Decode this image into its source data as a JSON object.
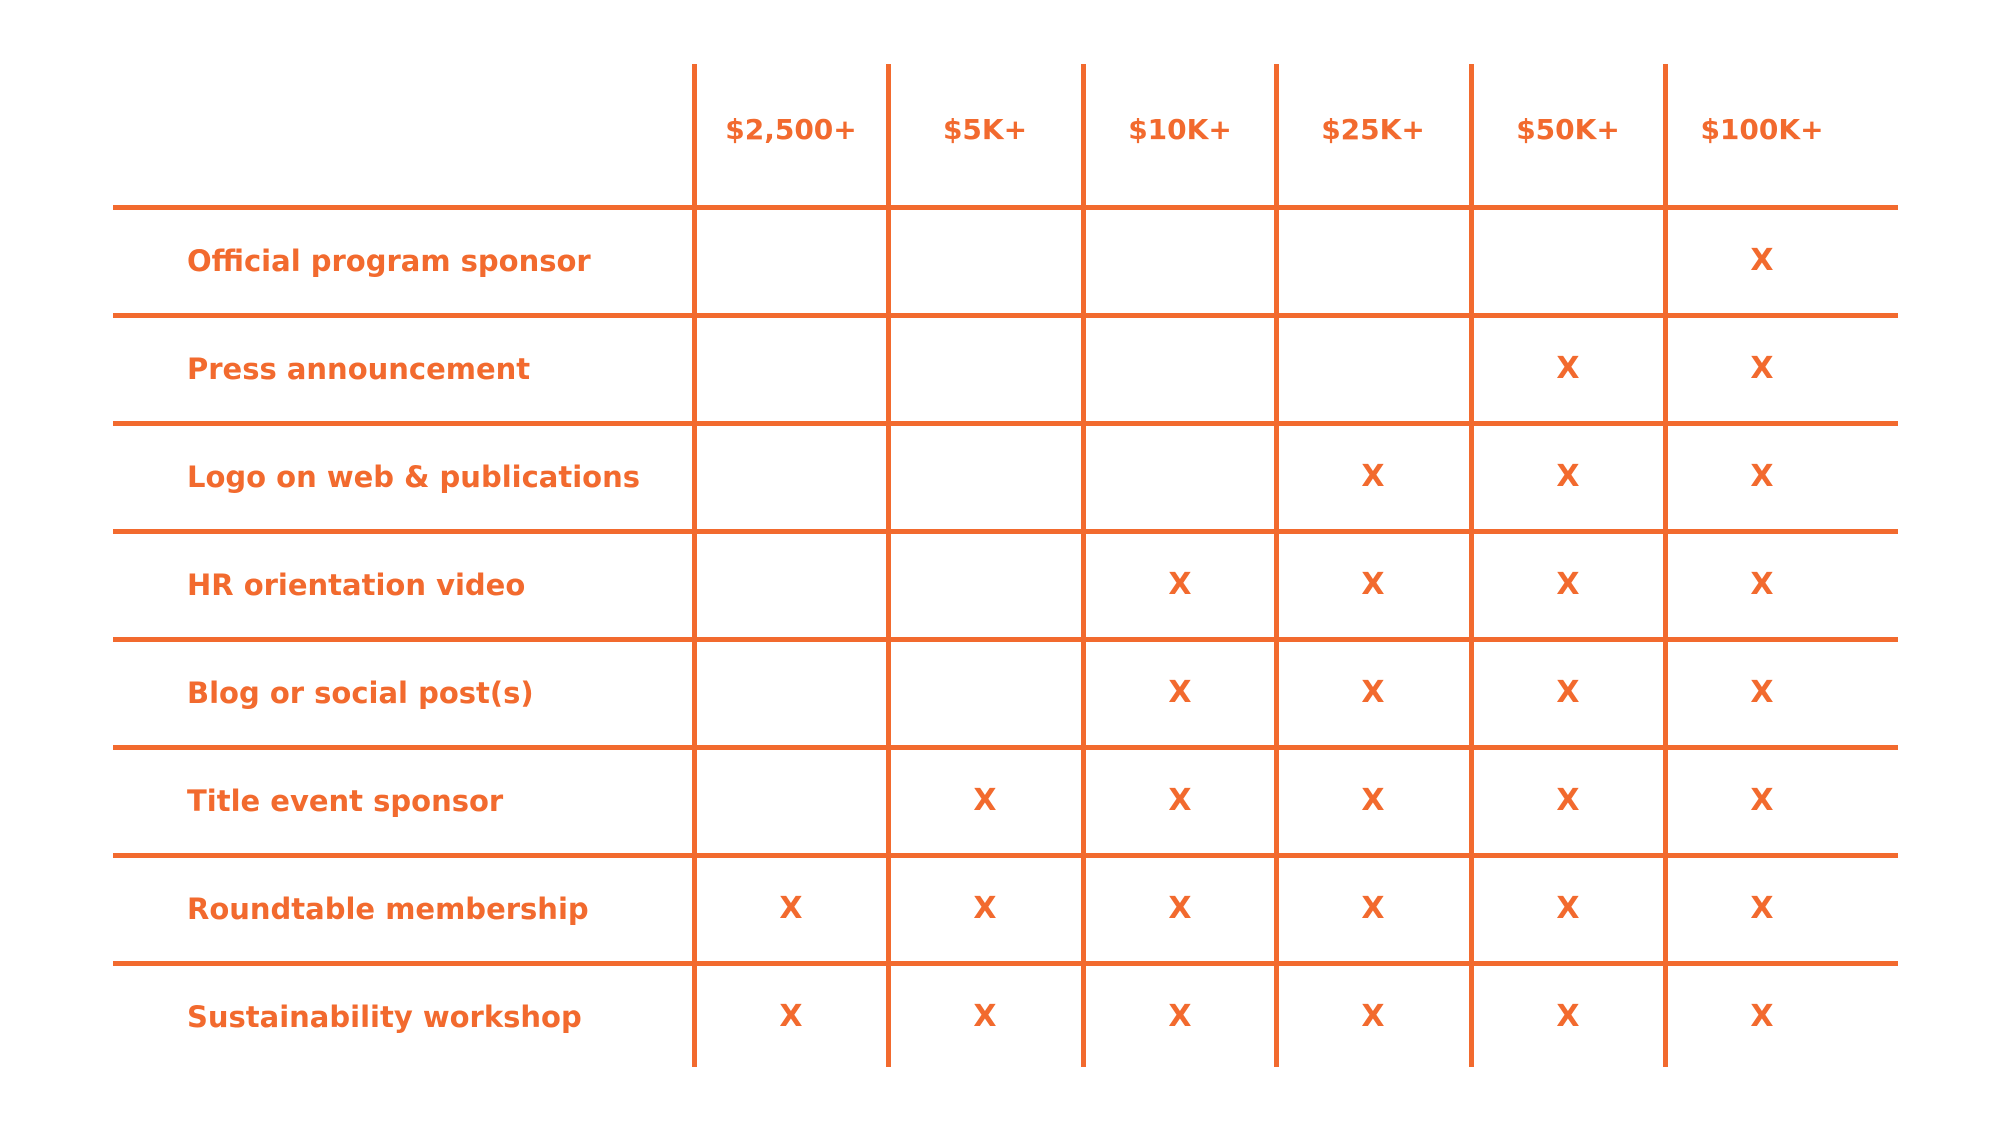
{
  "colors": {
    "accent": "#F26A2E",
    "background": "#FFFFFF"
  },
  "table": {
    "columns": [
      "$2,500+",
      "$5K+",
      "$10K+",
      "$25K+",
      "$50K+",
      "$100K+"
    ],
    "rows": [
      {
        "label": "Official program sponsor",
        "marks": [
          "",
          "",
          "",
          "",
          "",
          "X"
        ]
      },
      {
        "label": "Press announcement",
        "marks": [
          "",
          "",
          "",
          "",
          "X",
          "X"
        ]
      },
      {
        "label": "Logo on web & publications",
        "marks": [
          "",
          "",
          "",
          "X",
          "X",
          "X"
        ]
      },
      {
        "label": "HR orientation video",
        "marks": [
          "",
          "",
          "X",
          "X",
          "X",
          "X"
        ]
      },
      {
        "label": "Blog or social post(s)",
        "marks": [
          "",
          "",
          "X",
          "X",
          "X",
          "X"
        ]
      },
      {
        "label": "Title event sponsor",
        "marks": [
          "",
          "X",
          "X",
          "X",
          "X",
          "X"
        ]
      },
      {
        "label": "Roundtable membership",
        "marks": [
          "X",
          "X",
          "X",
          "X",
          "X",
          "X"
        ]
      },
      {
        "label": "Sustainability workshop",
        "marks": [
          "X",
          "X",
          "X",
          "X",
          "X",
          "X"
        ]
      }
    ]
  }
}
